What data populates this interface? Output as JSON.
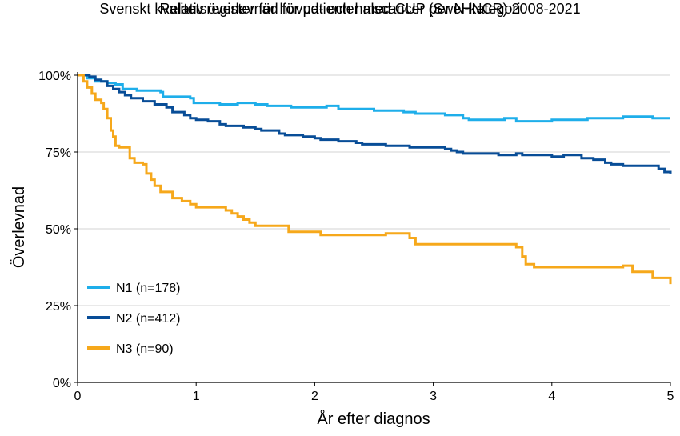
{
  "chart_data": {
    "type": "line",
    "title": "Relativ överlevnad för patienter med CUP per N-kategori",
    "subtitle": "Svenskt kvalitetsregister för huvud- och halscancer (SweHNCR) 2008-2021",
    "xlabel": "År efter diagnos",
    "ylabel": "Överlevnad",
    "xlim": [
      0,
      5
    ],
    "ylim": [
      0,
      100
    ],
    "x_ticks": [
      0,
      1,
      2,
      3,
      4,
      5
    ],
    "x_tick_labels": [
      "0",
      "1",
      "2",
      "3",
      "4",
      "5"
    ],
    "y_ticks": [
      0,
      25,
      50,
      75,
      100
    ],
    "y_tick_labels": [
      "0%",
      "25%",
      "50%",
      "75%",
      "100%"
    ],
    "grid": "horizontal",
    "legend_position": "bottom-left",
    "series": [
      {
        "name": "N1 (n=178)",
        "color": "#1EAEEA",
        "points": [
          [
            0,
            100
          ],
          [
            0.08,
            99
          ],
          [
            0.15,
            98
          ],
          [
            0.25,
            97.5
          ],
          [
            0.32,
            97
          ],
          [
            0.38,
            95.5
          ],
          [
            0.5,
            95
          ],
          [
            0.6,
            95
          ],
          [
            0.7,
            94.5
          ],
          [
            0.72,
            93
          ],
          [
            0.85,
            93
          ],
          [
            0.95,
            92.5
          ],
          [
            0.98,
            91
          ],
          [
            1.1,
            91
          ],
          [
            1.2,
            90.5
          ],
          [
            1.35,
            91
          ],
          [
            1.5,
            90.5
          ],
          [
            1.6,
            90
          ],
          [
            1.75,
            90
          ],
          [
            1.8,
            89.5
          ],
          [
            2.0,
            89.5
          ],
          [
            2.1,
            90
          ],
          [
            2.2,
            89
          ],
          [
            2.4,
            89
          ],
          [
            2.5,
            88.5
          ],
          [
            2.65,
            88.5
          ],
          [
            2.75,
            88
          ],
          [
            2.85,
            87.5
          ],
          [
            3.0,
            87.5
          ],
          [
            3.1,
            87
          ],
          [
            3.2,
            87
          ],
          [
            3.25,
            86
          ],
          [
            3.3,
            85.5
          ],
          [
            3.5,
            85.5
          ],
          [
            3.6,
            86
          ],
          [
            3.7,
            85
          ],
          [
            3.9,
            85
          ],
          [
            4.0,
            85.5
          ],
          [
            4.1,
            85.5
          ],
          [
            4.3,
            86
          ],
          [
            4.5,
            86
          ],
          [
            4.6,
            86.5
          ],
          [
            4.8,
            86.5
          ],
          [
            4.85,
            86
          ],
          [
            5.0,
            86
          ]
        ]
      },
      {
        "name": "N2 (n=412)",
        "color": "#084D97",
        "points": [
          [
            0,
            100
          ],
          [
            0.1,
            99.5
          ],
          [
            0.15,
            98.5
          ],
          [
            0.2,
            98
          ],
          [
            0.25,
            96.5
          ],
          [
            0.3,
            95.5
          ],
          [
            0.35,
            94.5
          ],
          [
            0.4,
            93.5
          ],
          [
            0.45,
            92.5
          ],
          [
            0.55,
            91.5
          ],
          [
            0.65,
            90.5
          ],
          [
            0.75,
            89.5
          ],
          [
            0.8,
            88
          ],
          [
            0.9,
            87
          ],
          [
            0.95,
            86
          ],
          [
            1.0,
            85.5
          ],
          [
            1.1,
            85
          ],
          [
            1.2,
            84
          ],
          [
            1.25,
            83.5
          ],
          [
            1.4,
            83
          ],
          [
            1.5,
            82.5
          ],
          [
            1.55,
            82
          ],
          [
            1.7,
            81
          ],
          [
            1.75,
            80.5
          ],
          [
            1.9,
            80
          ],
          [
            2.0,
            79.5
          ],
          [
            2.05,
            79
          ],
          [
            2.15,
            79
          ],
          [
            2.2,
            78.5
          ],
          [
            2.35,
            78
          ],
          [
            2.4,
            77.5
          ],
          [
            2.5,
            77.5
          ],
          [
            2.6,
            77
          ],
          [
            2.75,
            77
          ],
          [
            2.8,
            76.5
          ],
          [
            3.0,
            76.5
          ],
          [
            3.1,
            76
          ],
          [
            3.15,
            75.5
          ],
          [
            3.2,
            75
          ],
          [
            3.25,
            74.5
          ],
          [
            3.4,
            74.5
          ],
          [
            3.55,
            74
          ],
          [
            3.7,
            74.5
          ],
          [
            3.75,
            74
          ],
          [
            3.9,
            74
          ],
          [
            4.0,
            73.5
          ],
          [
            4.1,
            74
          ],
          [
            4.2,
            74
          ],
          [
            4.25,
            73
          ],
          [
            4.35,
            72.5
          ],
          [
            4.45,
            71.5
          ],
          [
            4.5,
            71
          ],
          [
            4.6,
            70.5
          ],
          [
            4.7,
            70.5
          ],
          [
            4.8,
            70.5
          ],
          [
            4.9,
            69.5
          ],
          [
            4.95,
            68.5
          ],
          [
            5.0,
            68
          ]
        ]
      },
      {
        "name": "N3 (n=90)",
        "color": "#F6A81B",
        "points": [
          [
            0,
            100
          ],
          [
            0.05,
            98
          ],
          [
            0.08,
            96
          ],
          [
            0.12,
            94
          ],
          [
            0.15,
            92
          ],
          [
            0.2,
            91
          ],
          [
            0.22,
            89
          ],
          [
            0.25,
            86
          ],
          [
            0.28,
            82
          ],
          [
            0.3,
            80
          ],
          [
            0.32,
            77
          ],
          [
            0.35,
            76.5
          ],
          [
            0.42,
            76.5
          ],
          [
            0.44,
            73
          ],
          [
            0.48,
            71.5
          ],
          [
            0.55,
            71
          ],
          [
            0.58,
            68
          ],
          [
            0.62,
            66
          ],
          [
            0.65,
            64
          ],
          [
            0.7,
            62
          ],
          [
            0.8,
            60
          ],
          [
            0.88,
            59
          ],
          [
            0.95,
            58
          ],
          [
            1.0,
            57
          ],
          [
            1.2,
            57
          ],
          [
            1.25,
            56
          ],
          [
            1.3,
            55
          ],
          [
            1.35,
            54
          ],
          [
            1.4,
            53
          ],
          [
            1.45,
            52
          ],
          [
            1.5,
            51
          ],
          [
            1.75,
            51
          ],
          [
            1.78,
            49
          ],
          [
            2.0,
            49
          ],
          [
            2.05,
            48
          ],
          [
            2.5,
            48
          ],
          [
            2.6,
            48.5
          ],
          [
            2.75,
            48.5
          ],
          [
            2.8,
            47
          ],
          [
            2.85,
            45
          ],
          [
            3.0,
            45
          ],
          [
            3.1,
            45
          ],
          [
            3.7,
            44
          ],
          [
            3.75,
            41
          ],
          [
            3.78,
            38.5
          ],
          [
            3.85,
            37.5
          ],
          [
            4.0,
            37.5
          ],
          [
            4.2,
            37.5
          ],
          [
            4.55,
            37.5
          ],
          [
            4.6,
            38
          ],
          [
            4.65,
            38
          ],
          [
            4.68,
            36
          ],
          [
            4.8,
            36
          ],
          [
            4.85,
            34
          ],
          [
            4.98,
            34
          ],
          [
            5.0,
            32
          ]
        ]
      }
    ]
  }
}
